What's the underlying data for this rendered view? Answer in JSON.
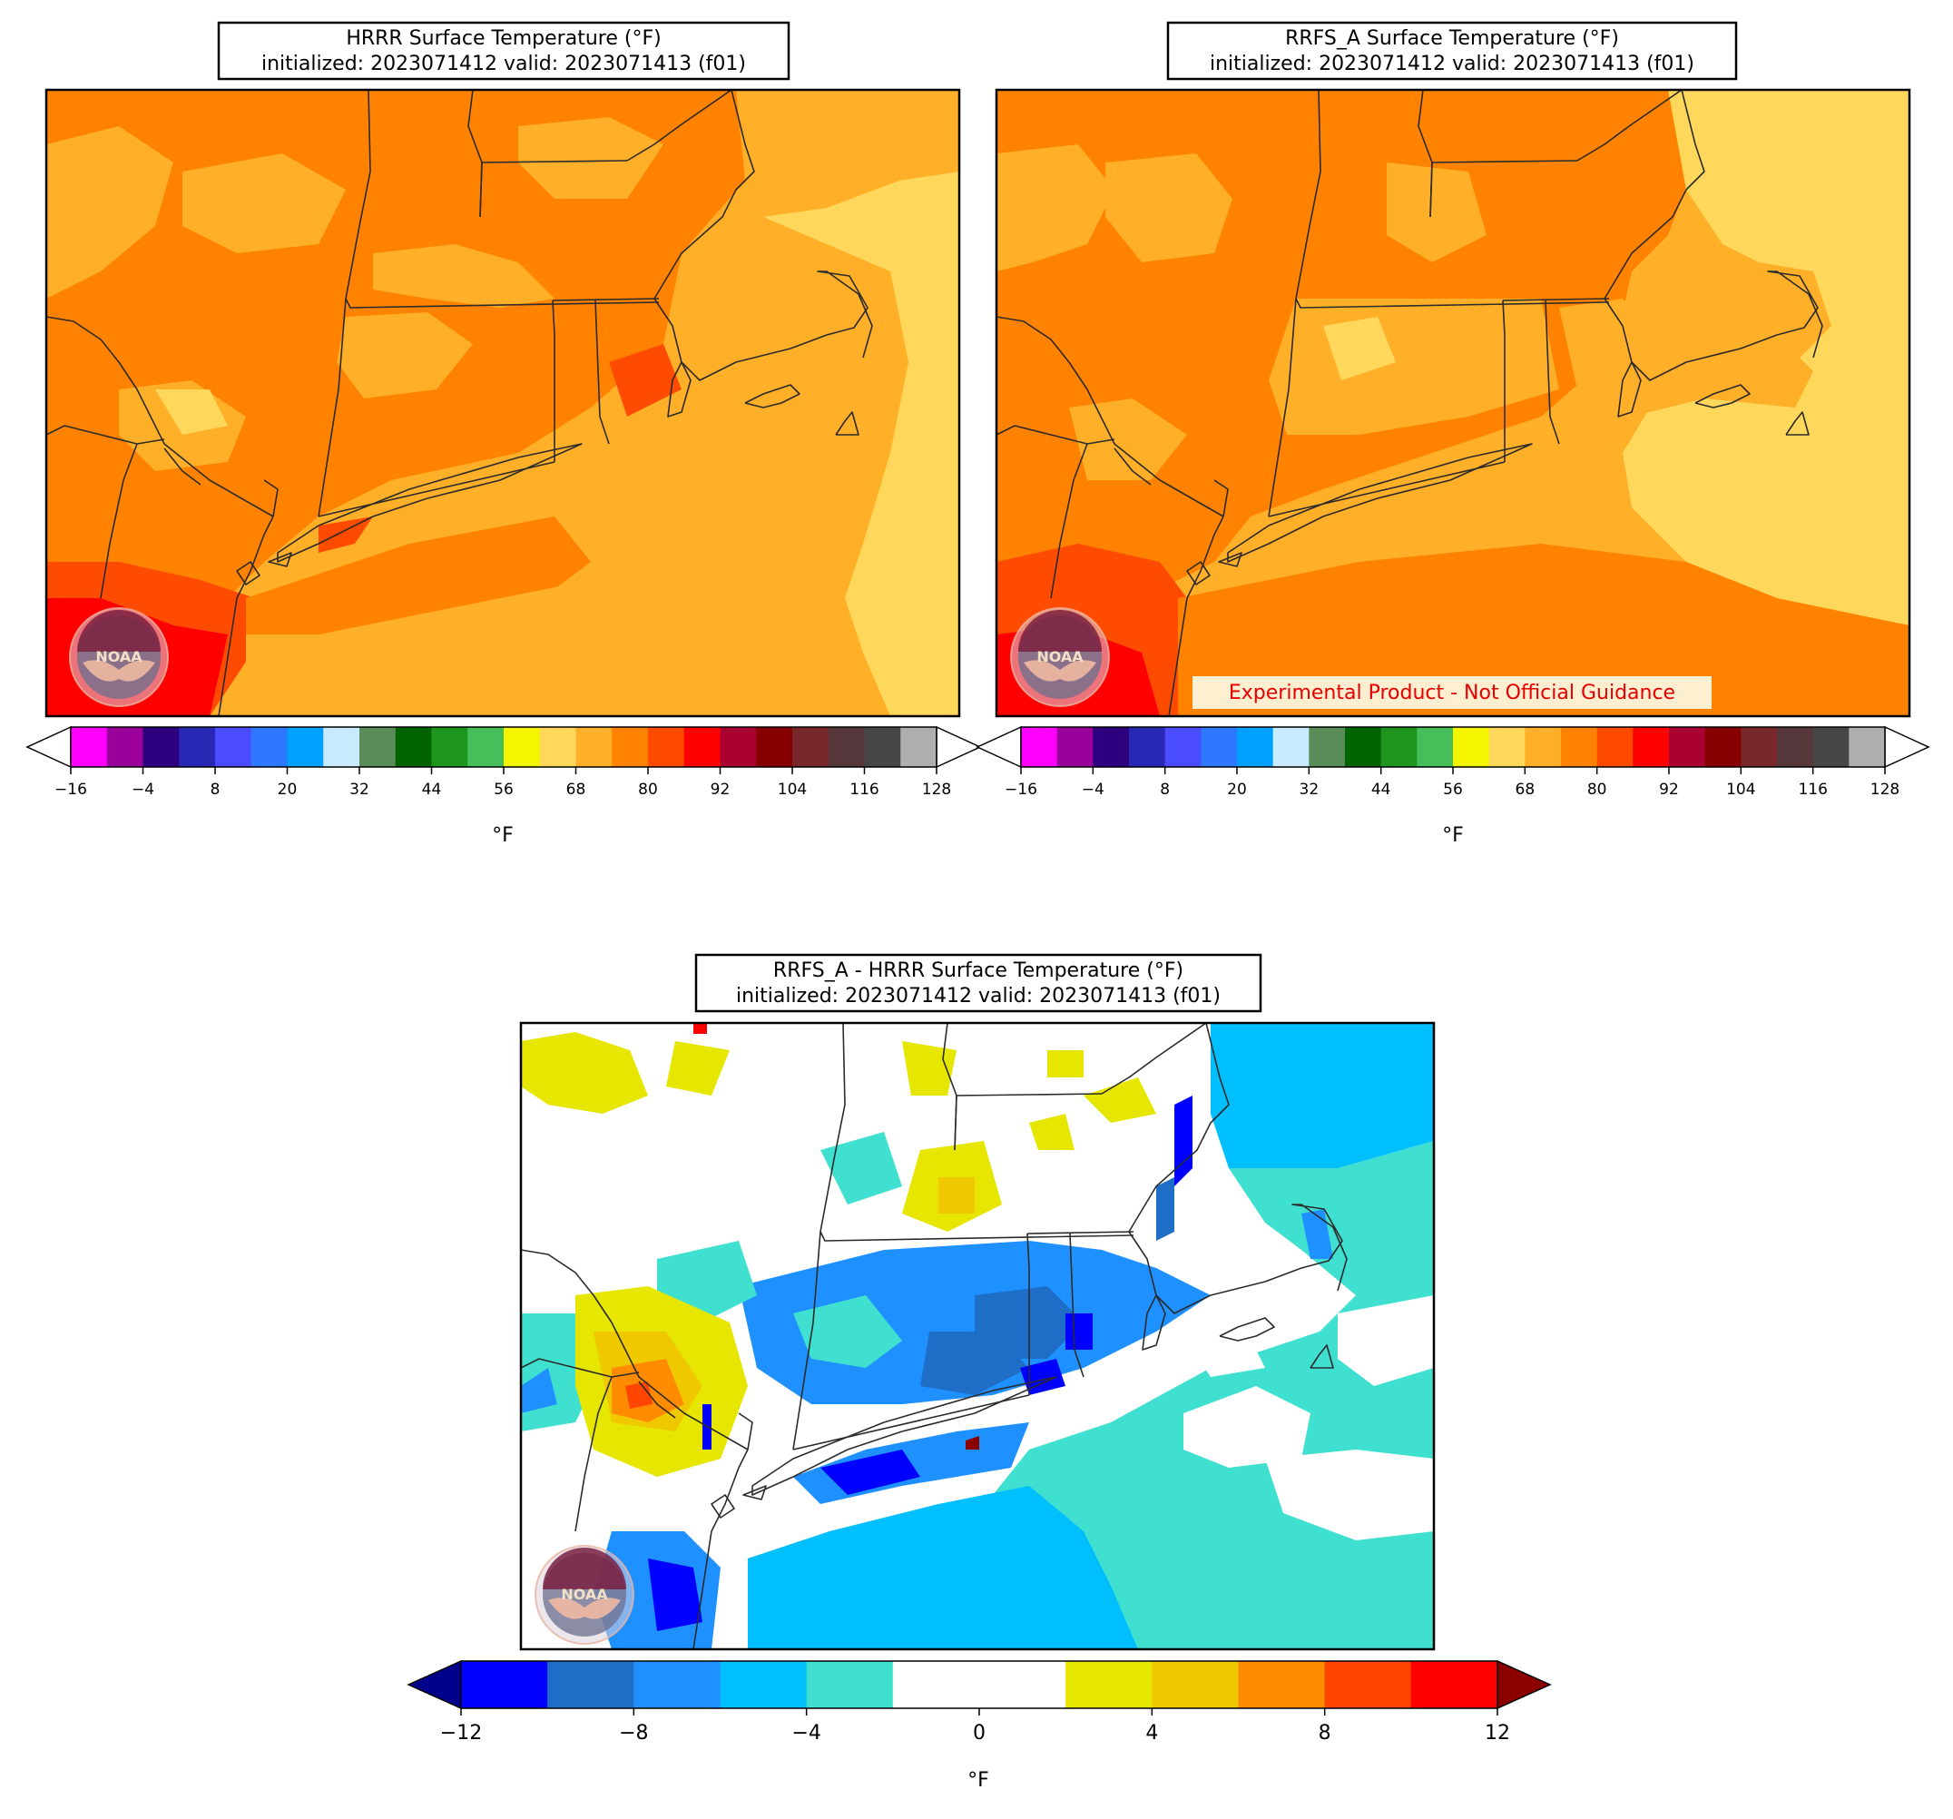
{
  "panels": {
    "hrrr": {
      "title_line1": "HRRR Surface Temperature (°F)",
      "title_line2": "initialized: 2023071412 valid: 2023071413 (f01)",
      "colorbar_ticks": [
        "−16",
        "−4",
        "8",
        "20",
        "32",
        "44",
        "56",
        "68",
        "80",
        "92",
        "104",
        "116",
        "128"
      ],
      "colorbar_unit": "°F",
      "logo_text": "NOAA"
    },
    "rrfs": {
      "title_line1": "RRFS_A Surface Temperature (°F)",
      "title_line2": "initialized: 2023071412 valid: 2023071413 (f01)",
      "colorbar_ticks": [
        "−16",
        "−4",
        "8",
        "20",
        "32",
        "44",
        "56",
        "68",
        "80",
        "92",
        "104",
        "116",
        "128"
      ],
      "colorbar_unit": "°F",
      "disclaimer": "Experimental Product - Not Official Guidance",
      "logo_text": "NOAA"
    },
    "diff": {
      "title_line1": "RRFS_A - HRRR Surface Temperature (°F)",
      "title_line2": "initialized: 2023071412 valid: 2023071413 (f01)",
      "colorbar_ticks": [
        "−12",
        "−8",
        "−4",
        "0",
        "4",
        "8",
        "12"
      ],
      "colorbar_unit": "°F",
      "logo_text": "NOAA"
    }
  },
  "temperature_scale": {
    "levels": [
      -16,
      -10,
      -4,
      2,
      8,
      14,
      20,
      26,
      32,
      38,
      44,
      50,
      56,
      62,
      68,
      74,
      80,
      86,
      92,
      98,
      104,
      110,
      116,
      122,
      128
    ],
    "colors": [
      "#ff00ff",
      "#9a009a",
      "#2d0080",
      "#2828b4",
      "#4b4bff",
      "#2d78ff",
      "#00a0ff",
      "#c8ebff",
      "#5a8c5a",
      "#006400",
      "#1e961e",
      "#46be5a",
      "#f5f500",
      "#ffd75a",
      "#ffaf28",
      "#ff8200",
      "#ff4b00",
      "#ff0000",
      "#aa0032",
      "#870000",
      "#78282d",
      "#55373c",
      "#464646",
      "#afafaf"
    ],
    "over_color": "#ffffff",
    "under_color": "#ffffff"
  },
  "difference_scale": {
    "levels": [
      -12,
      -10,
      -8,
      -6,
      -4,
      -2,
      0,
      2,
      4,
      6,
      8,
      10,
      12
    ],
    "colors": [
      "#0000ff",
      "#1e6ec8",
      "#1e90ff",
      "#00bfff",
      "#40e0d0",
      "#ffffff",
      "#ffffff",
      "#e6e600",
      "#f0c800",
      "#ff8c00",
      "#ff4500",
      "#ff0000"
    ],
    "under_color": "#00008b",
    "over_color": "#8b0000"
  }
}
